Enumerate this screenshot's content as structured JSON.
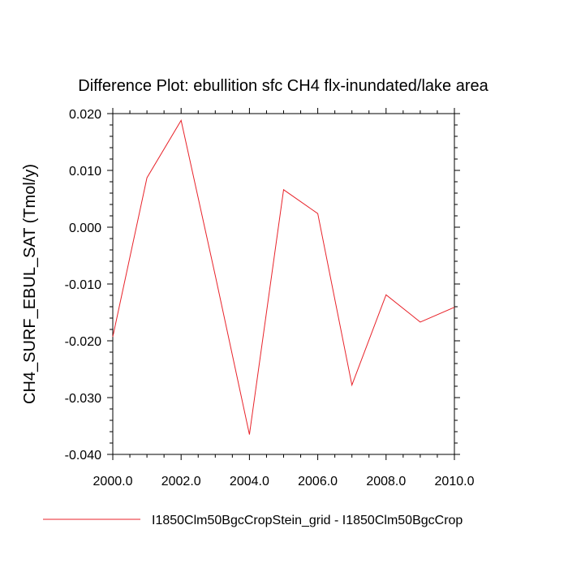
{
  "chart_data": {
    "type": "line",
    "title": "Difference Plot: ebullition sfc CH4 flx-inundated/lake area",
    "xlabel": "",
    "ylabel": "CH4_SURF_EBUL_SAT  (Tmol/y)",
    "xlim": [
      2000,
      2010
    ],
    "ylim": [
      -0.04,
      0.02
    ],
    "x_ticks": [
      "2000.0",
      "2002.0",
      "2004.0",
      "2006.0",
      "2008.0",
      "2010.0"
    ],
    "y_ticks": [
      "0.020",
      "0.010",
      "0.000",
      "-0.010",
      "-0.020",
      "-0.030",
      "-0.040"
    ],
    "grid": false,
    "legend_position": "bottom",
    "series": [
      {
        "name": "I1850Clm50BgcCropStein_grid - I1850Clm50BgcCrop",
        "color": "#e8232a",
        "x": [
          2000,
          2001,
          2002,
          2003,
          2004,
          2005,
          2006,
          2007,
          2008,
          2009,
          2010
        ],
        "y": [
          -0.0193,
          0.0087,
          0.0188,
          -0.0085,
          -0.0365,
          0.0066,
          0.0024,
          -0.0278,
          -0.0119,
          -0.0167,
          -0.0141
        ]
      }
    ]
  }
}
